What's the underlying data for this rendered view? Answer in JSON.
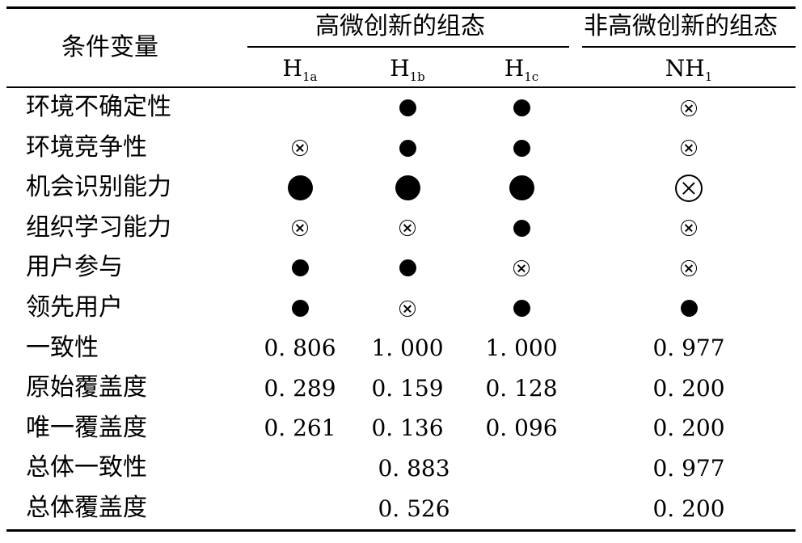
{
  "header": {
    "condition_label": "条件变量",
    "group_high": "高微创新的组态",
    "group_nonhigh": "非高微创新的组态"
  },
  "columns": [
    {
      "base": "H",
      "sub": "1a"
    },
    {
      "base": "H",
      "sub": "1b"
    },
    {
      "base": "H",
      "sub": "1c"
    },
    {
      "base": "NH",
      "sub": "1"
    }
  ],
  "legend_symbols": {
    "core_present": "large filled circle",
    "peripheral_present": "small filled circle",
    "core_absent": "large crossed circle",
    "peripheral_absent": "small crossed circle"
  },
  "condition_rows": [
    {
      "label": "环境不确定性",
      "cells": [
        "",
        "peripheral_present",
        "peripheral_present",
        "peripheral_absent"
      ]
    },
    {
      "label": "环境竞争性",
      "cells": [
        "peripheral_absent",
        "peripheral_present",
        "peripheral_present",
        "peripheral_absent"
      ]
    },
    {
      "label": "机会识别能力",
      "cells": [
        "core_present",
        "core_present",
        "core_present",
        "core_absent"
      ]
    },
    {
      "label": "组织学习能力",
      "cells": [
        "peripheral_absent",
        "peripheral_absent",
        "peripheral_present",
        "peripheral_absent"
      ]
    },
    {
      "label": "用户参与",
      "cells": [
        "peripheral_present",
        "peripheral_present",
        "peripheral_absent",
        "peripheral_absent"
      ]
    },
    {
      "label": "领先用户",
      "cells": [
        "peripheral_present",
        "peripheral_absent",
        "peripheral_present",
        "peripheral_present"
      ]
    }
  ],
  "metric_rows": [
    {
      "label": "一致性",
      "values": [
        "0. 806",
        "1. 000",
        "1. 000",
        "0. 977"
      ]
    },
    {
      "label": "原始覆盖度",
      "values": [
        "0. 289",
        "0. 159",
        "0. 128",
        "0. 200"
      ]
    },
    {
      "label": "唯一覆盖度",
      "values": [
        "0. 261",
        "0. 136",
        "0. 096",
        "0. 200"
      ]
    }
  ],
  "overall_rows": [
    {
      "label": "总体一致性",
      "high": "0. 883",
      "nonhigh": "0. 977"
    },
    {
      "label": "总体覆盖度",
      "high": "0. 526",
      "nonhigh": "0. 200"
    }
  ]
}
